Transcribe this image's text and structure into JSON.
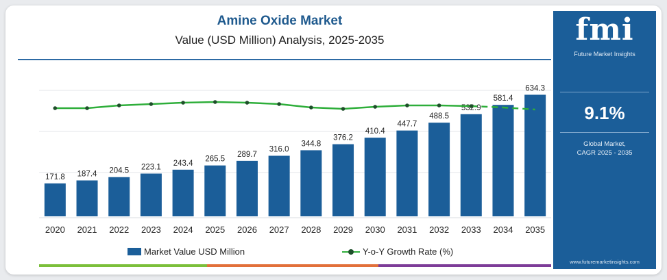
{
  "header": {
    "title": "Amine Oxide Market",
    "subtitle": "Value (USD Million) Analysis, 2025-2035"
  },
  "sidebar": {
    "logo": "fmi",
    "logo_subtitle": "Future Market Insights",
    "cagr_value": "9.1%",
    "cagr_label_line1": "Global Market,",
    "cagr_label_line2": "CAGR 2025 - 2035",
    "website": "www.futuremarketinsights.com"
  },
  "colors": {
    "bar": "#1b5e99",
    "line": "#2eae3a",
    "marker": "#1e4f2a",
    "sidebar": "#1b5e99",
    "title": "#1f5a8e"
  },
  "chart_data": {
    "type": "bar",
    "title": "Amine Oxide Market",
    "subtitle": "Value (USD Million) Analysis, 2025-2035",
    "categories": [
      "2020",
      "2021",
      "2022",
      "2023",
      "2024",
      "2025",
      "2026",
      "2027",
      "2028",
      "2029",
      "2030",
      "2031",
      "2032",
      "2033",
      "2034",
      "2035"
    ],
    "series": [
      {
        "name": "Market Value USD Million",
        "type": "bar",
        "values": [
          171.8,
          187.4,
          204.5,
          223.1,
          243.4,
          265.5,
          289.7,
          316.0,
          344.8,
          376.2,
          410.4,
          447.7,
          488.5,
          532.9,
          581.4,
          634.3
        ],
        "labels": [
          "171.8",
          "187.4",
          "204.5",
          "223.1",
          "243.4",
          "265.5",
          "289.7",
          "316.0",
          "344.8",
          "376.2",
          "410.4",
          "447.7",
          "488.5",
          "532.9",
          "581.4",
          "634.3"
        ]
      },
      {
        "name": "Y-o-Y Growth Rate (%)",
        "type": "line",
        "values": [
          8.9,
          8.9,
          9.1,
          9.2,
          9.3,
          9.35,
          9.3,
          9.2,
          8.95,
          8.85,
          9.0,
          9.1,
          9.1,
          9.05,
          8.95,
          8.8
        ]
      }
    ],
    "ylim": [
      0,
      700
    ],
    "y2lim": [
      7,
      10
    ],
    "grid": true,
    "legend_position": "bottom"
  }
}
